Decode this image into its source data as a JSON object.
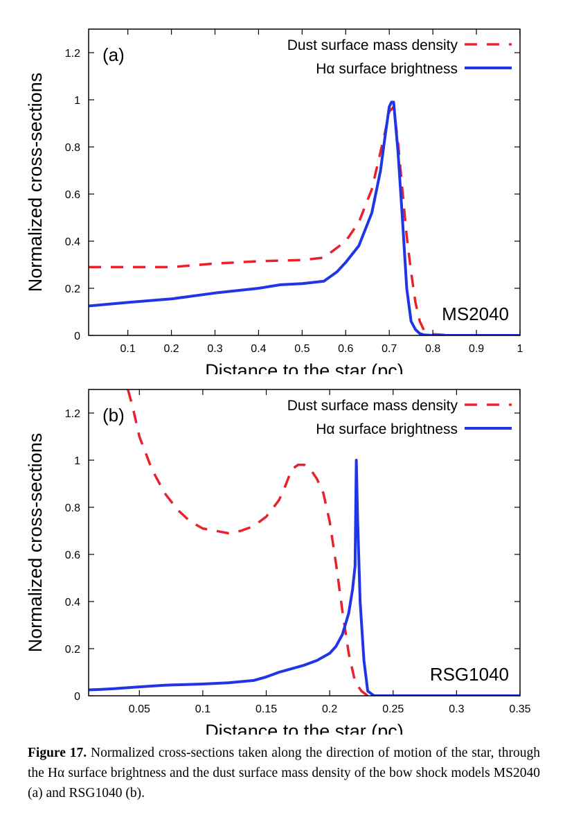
{
  "chart_data": [
    {
      "type": "line",
      "panel_label": "(a)",
      "model_label": "MS2040",
      "xlabel": "Distance to the star (pc)",
      "ylabel": "Normalized cross-sections",
      "xlim": [
        0.01,
        1.0
      ],
      "ylim": [
        0,
        1.3
      ],
      "xticks": [
        0.1,
        0.2,
        0.3,
        0.4,
        0.5,
        0.6,
        0.7,
        0.8,
        0.9,
        1
      ],
      "xtick_labels": [
        "0.1",
        "0.2",
        "0.3",
        "0.4",
        "0.5",
        "0.6",
        "0.7",
        "0.8",
        "0.9",
        "1"
      ],
      "yticks": [
        0,
        0.2,
        0.4,
        0.6,
        0.8,
        1,
        1.2
      ],
      "ytick_labels": [
        "0",
        "0.2",
        "0.4",
        "0.6",
        "0.8",
        "1",
        "1.2"
      ],
      "legend_position": "top-right",
      "series": [
        {
          "name": "Dust surface mass density",
          "style": "dashed",
          "color": "#e8212b",
          "x": [
            0.01,
            0.1,
            0.2,
            0.3,
            0.4,
            0.5,
            0.55,
            0.6,
            0.63,
            0.66,
            0.68,
            0.69,
            0.7,
            0.71,
            0.72,
            0.73,
            0.74,
            0.75,
            0.76,
            0.77,
            0.78,
            0.8,
            0.85,
            0.9,
            1.0
          ],
          "y": [
            0.29,
            0.29,
            0.29,
            0.305,
            0.315,
            0.32,
            0.33,
            0.4,
            0.48,
            0.62,
            0.78,
            0.86,
            0.95,
            0.97,
            0.82,
            0.62,
            0.42,
            0.27,
            0.14,
            0.06,
            0.02,
            0.005,
            0,
            0,
            0
          ]
        },
        {
          "name": "Hα surface brightness",
          "style": "solid",
          "color": "#1f35e6",
          "x": [
            0.01,
            0.1,
            0.2,
            0.3,
            0.4,
            0.45,
            0.5,
            0.55,
            0.58,
            0.6,
            0.63,
            0.66,
            0.68,
            0.69,
            0.7,
            0.705,
            0.71,
            0.72,
            0.73,
            0.74,
            0.75,
            0.76,
            0.77,
            0.78,
            0.8,
            0.85,
            0.9,
            1.0
          ],
          "y": [
            0.125,
            0.14,
            0.155,
            0.18,
            0.2,
            0.215,
            0.22,
            0.23,
            0.27,
            0.31,
            0.38,
            0.52,
            0.7,
            0.84,
            0.97,
            0.99,
            0.99,
            0.78,
            0.5,
            0.2,
            0.06,
            0.025,
            0.008,
            0.002,
            0,
            0,
            0,
            0
          ]
        }
      ]
    },
    {
      "type": "line",
      "panel_label": "(b)",
      "model_label": "RSG1040",
      "xlabel": "Distance to the star (pc)",
      "ylabel": "Normalized cross-sections",
      "xlim": [
        0.01,
        0.35
      ],
      "ylim": [
        0,
        1.3
      ],
      "xticks": [
        0.05,
        0.1,
        0.15,
        0.2,
        0.25,
        0.3,
        0.35
      ],
      "xtick_labels": [
        "0.05",
        "0.1",
        "0.15",
        "0.2",
        "0.25",
        "0.3",
        "0.35"
      ],
      "yticks": [
        0,
        0.2,
        0.4,
        0.6,
        0.8,
        1,
        1.2
      ],
      "ytick_labels": [
        "0",
        "0.2",
        "0.4",
        "0.6",
        "0.8",
        "1",
        "1.2"
      ],
      "legend_position": "top-right",
      "series": [
        {
          "name": "Dust surface mass density",
          "style": "dashed",
          "color": "#e8212b",
          "x": [
            0.041,
            0.045,
            0.05,
            0.06,
            0.07,
            0.08,
            0.09,
            0.1,
            0.11,
            0.12,
            0.13,
            0.14,
            0.15,
            0.16,
            0.165,
            0.17,
            0.175,
            0.18,
            0.185,
            0.19,
            0.195,
            0.2,
            0.205,
            0.21,
            0.215,
            0.22,
            0.225,
            0.23
          ],
          "y": [
            1.3,
            1.22,
            1.1,
            0.96,
            0.86,
            0.79,
            0.74,
            0.71,
            0.7,
            0.69,
            0.7,
            0.72,
            0.76,
            0.83,
            0.89,
            0.96,
            0.98,
            0.98,
            0.96,
            0.92,
            0.86,
            0.74,
            0.56,
            0.36,
            0.18,
            0.06,
            0.02,
            0
          ]
        },
        {
          "name": "Hα surface brightness",
          "style": "solid",
          "color": "#1f35e6",
          "x": [
            0.01,
            0.02,
            0.03,
            0.05,
            0.07,
            0.1,
            0.12,
            0.14,
            0.15,
            0.16,
            0.17,
            0.18,
            0.19,
            0.2,
            0.205,
            0.21,
            0.215,
            0.218,
            0.22,
            0.221,
            0.222,
            0.224,
            0.227,
            0.23,
            0.235,
            0.25,
            0.3,
            0.35
          ],
          "y": [
            0.025,
            0.027,
            0.03,
            0.038,
            0.045,
            0.05,
            0.055,
            0.065,
            0.08,
            0.1,
            0.115,
            0.13,
            0.15,
            0.18,
            0.21,
            0.26,
            0.35,
            0.45,
            0.55,
            1.0,
            0.75,
            0.4,
            0.15,
            0.02,
            0,
            0,
            0,
            0
          ]
        }
      ]
    }
  ],
  "caption": {
    "label": "Figure 17.",
    "text": " Normalized cross-sections taken along the direction of motion of the star, through the Hα surface brightness and the dust surface mass density of the bow shock models MS2040 (a) and RSG1040 (b)."
  }
}
